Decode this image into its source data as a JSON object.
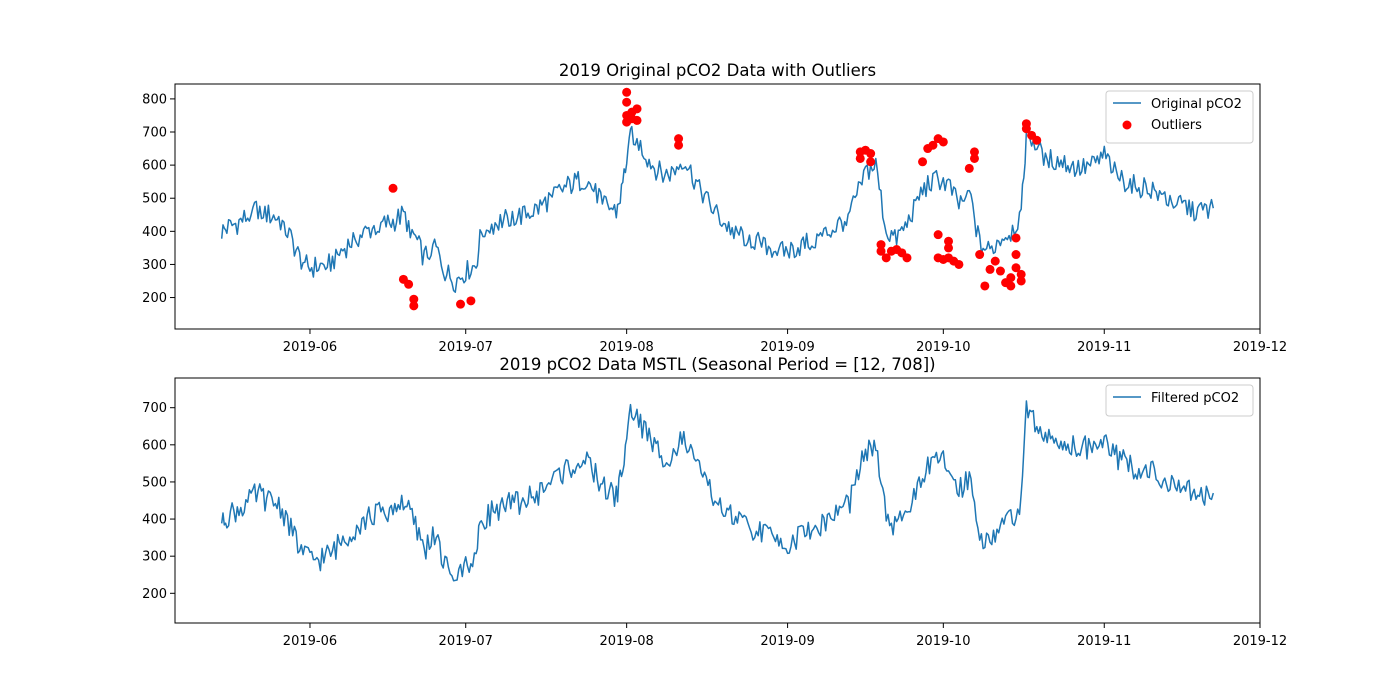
{
  "chart_data": [
    {
      "type": "line",
      "title": "2019 Original pCO2 Data with Outliers",
      "xlabel": "",
      "ylabel": "",
      "x_axis_type": "date",
      "xlim": [
        "2019-05-06",
        "2019-12-01"
      ],
      "ylim": [
        105,
        845
      ],
      "x_ticks": [
        "2019-06",
        "2019-07",
        "2019-08",
        "2019-09",
        "2019-10",
        "2019-11",
        "2019-12"
      ],
      "y_ticks": [
        200,
        300,
        400,
        500,
        600,
        700,
        800
      ],
      "legend_position": "top-right",
      "legend": [
        "Original pCO2",
        "Outliers"
      ],
      "series": [
        {
          "name": "Original pCO2",
          "color": "#1f77b4",
          "points": [
            [
              "2019-05-15",
              400
            ],
            [
              "2019-05-16",
              410
            ],
            [
              "2019-05-18",
              425
            ],
            [
              "2019-05-20",
              445
            ],
            [
              "2019-05-22",
              470
            ],
            [
              "2019-05-24",
              450
            ],
            [
              "2019-05-26",
              440
            ],
            [
              "2019-05-28",
              390
            ],
            [
              "2019-05-30",
              320
            ],
            [
              "2019-06-01",
              290
            ],
            [
              "2019-06-03",
              295
            ],
            [
              "2019-06-05",
              305
            ],
            [
              "2019-06-07",
              340
            ],
            [
              "2019-06-09",
              370
            ],
            [
              "2019-06-11",
              390
            ],
            [
              "2019-06-13",
              410
            ],
            [
              "2019-06-15",
              420
            ],
            [
              "2019-06-17",
              430
            ],
            [
              "2019-06-19",
              450
            ],
            [
              "2019-06-21",
              390
            ],
            [
              "2019-06-23",
              320
            ],
            [
              "2019-06-25",
              360
            ],
            [
              "2019-06-27",
              280
            ],
            [
              "2019-06-29",
              250
            ],
            [
              "2019-07-01",
              280
            ],
            [
              "2019-07-03",
              300
            ],
            [
              "2019-07-04",
              400
            ],
            [
              "2019-07-06",
              420
            ],
            [
              "2019-07-09",
              440
            ],
            [
              "2019-07-12",
              450
            ],
            [
              "2019-07-15",
              470
            ],
            [
              "2019-07-18",
              510
            ],
            [
              "2019-07-21",
              540
            ],
            [
              "2019-07-24",
              560
            ],
            [
              "2019-07-26",
              520
            ],
            [
              "2019-07-28",
              480
            ],
            [
              "2019-07-30",
              460
            ],
            [
              "2019-07-31",
              520
            ],
            [
              "2019-08-01",
              620
            ],
            [
              "2019-08-02",
              700
            ],
            [
              "2019-08-04",
              650
            ],
            [
              "2019-08-06",
              600
            ],
            [
              "2019-08-08",
              570
            ],
            [
              "2019-08-10",
              580
            ],
            [
              "2019-08-12",
              620
            ],
            [
              "2019-08-14",
              560
            ],
            [
              "2019-08-17",
              480
            ],
            [
              "2019-08-20",
              420
            ],
            [
              "2019-08-23",
              390
            ],
            [
              "2019-08-26",
              370
            ],
            [
              "2019-08-29",
              350
            ],
            [
              "2019-09-01",
              340
            ],
            [
              "2019-09-04",
              360
            ],
            [
              "2019-09-07",
              380
            ],
            [
              "2019-09-10",
              410
            ],
            [
              "2019-09-13",
              450
            ],
            [
              "2019-09-16",
              580
            ],
            [
              "2019-09-18",
              600
            ],
            [
              "2019-09-20",
              400
            ],
            [
              "2019-09-22",
              380
            ],
            [
              "2019-09-24",
              420
            ],
            [
              "2019-09-26",
              500
            ],
            [
              "2019-09-28",
              540
            ],
            [
              "2019-09-30",
              560
            ],
            [
              "2019-10-02",
              540
            ],
            [
              "2019-10-04",
              480
            ],
            [
              "2019-10-06",
              520
            ],
            [
              "2019-10-08",
              360
            ],
            [
              "2019-10-10",
              340
            ],
            [
              "2019-10-12",
              380
            ],
            [
              "2019-10-14",
              400
            ],
            [
              "2019-10-16",
              450
            ],
            [
              "2019-10-17",
              700
            ],
            [
              "2019-10-19",
              660
            ],
            [
              "2019-10-21",
              620
            ],
            [
              "2019-10-24",
              610
            ],
            [
              "2019-10-27",
              590
            ],
            [
              "2019-10-30",
              600
            ],
            [
              "2019-11-01",
              630
            ],
            [
              "2019-11-04",
              560
            ],
            [
              "2019-11-07",
              540
            ],
            [
              "2019-11-10",
              530
            ],
            [
              "2019-11-13",
              500
            ],
            [
              "2019-11-16",
              480
            ],
            [
              "2019-11-19",
              460
            ],
            [
              "2019-11-22",
              470
            ]
          ]
        },
        {
          "name": "Outliers",
          "color": "#ff0000",
          "kind": "scatter",
          "points": [
            [
              "2019-06-17",
              530
            ],
            [
              "2019-06-19",
              255
            ],
            [
              "2019-06-20",
              240
            ],
            [
              "2019-06-21",
              195
            ],
            [
              "2019-06-21",
              175
            ],
            [
              "2019-06-30",
              180
            ],
            [
              "2019-07-02",
              190
            ],
            [
              "2019-08-01",
              820
            ],
            [
              "2019-08-01",
              790
            ],
            [
              "2019-08-01",
              750
            ],
            [
              "2019-08-01",
              730
            ],
            [
              "2019-08-02",
              760
            ],
            [
              "2019-08-02",
              740
            ],
            [
              "2019-08-03",
              770
            ],
            [
              "2019-08-03",
              735
            ],
            [
              "2019-08-11",
              680
            ],
            [
              "2019-08-11",
              660
            ],
            [
              "2019-09-15",
              620
            ],
            [
              "2019-09-15",
              640
            ],
            [
              "2019-09-16",
              645
            ],
            [
              "2019-09-17",
              635
            ],
            [
              "2019-09-17",
              610
            ],
            [
              "2019-09-19",
              360
            ],
            [
              "2019-09-19",
              340
            ],
            [
              "2019-09-20",
              320
            ],
            [
              "2019-09-21",
              340
            ],
            [
              "2019-09-22",
              345
            ],
            [
              "2019-09-23",
              335
            ],
            [
              "2019-09-24",
              320
            ],
            [
              "2019-09-27",
              610
            ],
            [
              "2019-09-28",
              650
            ],
            [
              "2019-09-29",
              660
            ],
            [
              "2019-09-30",
              680
            ],
            [
              "2019-09-30",
              390
            ],
            [
              "2019-09-30",
              320
            ],
            [
              "2019-10-01",
              670
            ],
            [
              "2019-10-01",
              315
            ],
            [
              "2019-10-02",
              370
            ],
            [
              "2019-10-02",
              350
            ],
            [
              "2019-10-02",
              320
            ],
            [
              "2019-10-03",
              310
            ],
            [
              "2019-10-04",
              300
            ],
            [
              "2019-10-06",
              590
            ],
            [
              "2019-10-07",
              640
            ],
            [
              "2019-10-07",
              620
            ],
            [
              "2019-10-08",
              330
            ],
            [
              "2019-10-09",
              235
            ],
            [
              "2019-10-10",
              285
            ],
            [
              "2019-10-11",
              310
            ],
            [
              "2019-10-12",
              280
            ],
            [
              "2019-10-13",
              245
            ],
            [
              "2019-10-14",
              260
            ],
            [
              "2019-10-14",
              235
            ],
            [
              "2019-10-15",
              380
            ],
            [
              "2019-10-15",
              330
            ],
            [
              "2019-10-15",
              290
            ],
            [
              "2019-10-16",
              270
            ],
            [
              "2019-10-16",
              250
            ],
            [
              "2019-10-17",
              725
            ],
            [
              "2019-10-17",
              710
            ],
            [
              "2019-10-18",
              690
            ],
            [
              "2019-10-19",
              675
            ]
          ]
        }
      ]
    },
    {
      "type": "line",
      "title": "2019 pCO2 Data MSTL (Seasonal Period = [12, 708])",
      "xlabel": "",
      "ylabel": "",
      "x_axis_type": "date",
      "xlim": [
        "2019-05-06",
        "2019-12-01"
      ],
      "ylim": [
        120,
        780
      ],
      "x_ticks": [
        "2019-06",
        "2019-07",
        "2019-08",
        "2019-09",
        "2019-10",
        "2019-11",
        "2019-12"
      ],
      "y_ticks": [
        200,
        300,
        400,
        500,
        600,
        700
      ],
      "legend_position": "top-right",
      "legend": [
        "Filtered pCO2"
      ],
      "series": [
        {
          "name": "Filtered pCO2",
          "color": "#1f77b4",
          "points": [
            [
              "2019-05-15",
              400
            ],
            [
              "2019-05-16",
              410
            ],
            [
              "2019-05-18",
              425
            ],
            [
              "2019-05-20",
              445
            ],
            [
              "2019-05-22",
              470
            ],
            [
              "2019-05-24",
              450
            ],
            [
              "2019-05-26",
              440
            ],
            [
              "2019-05-28",
              390
            ],
            [
              "2019-05-30",
              320
            ],
            [
              "2019-06-01",
              290
            ],
            [
              "2019-06-03",
              295
            ],
            [
              "2019-06-05",
              305
            ],
            [
              "2019-06-07",
              340
            ],
            [
              "2019-06-09",
              370
            ],
            [
              "2019-06-11",
              390
            ],
            [
              "2019-06-13",
              410
            ],
            [
              "2019-06-15",
              420
            ],
            [
              "2019-06-17",
              430
            ],
            [
              "2019-06-19",
              450
            ],
            [
              "2019-06-21",
              390
            ],
            [
              "2019-06-23",
              320
            ],
            [
              "2019-06-25",
              360
            ],
            [
              "2019-06-27",
              280
            ],
            [
              "2019-06-29",
              250
            ],
            [
              "2019-07-01",
              280
            ],
            [
              "2019-07-03",
              300
            ],
            [
              "2019-07-04",
              400
            ],
            [
              "2019-07-06",
              420
            ],
            [
              "2019-07-09",
              440
            ],
            [
              "2019-07-12",
              450
            ],
            [
              "2019-07-15",
              470
            ],
            [
              "2019-07-18",
              510
            ],
            [
              "2019-07-21",
              540
            ],
            [
              "2019-07-24",
              560
            ],
            [
              "2019-07-26",
              520
            ],
            [
              "2019-07-28",
              480
            ],
            [
              "2019-07-30",
              460
            ],
            [
              "2019-07-31",
              520
            ],
            [
              "2019-08-01",
              620
            ],
            [
              "2019-08-02",
              700
            ],
            [
              "2019-08-04",
              650
            ],
            [
              "2019-08-06",
              600
            ],
            [
              "2019-08-08",
              570
            ],
            [
              "2019-08-10",
              580
            ],
            [
              "2019-08-12",
              620
            ],
            [
              "2019-08-14",
              560
            ],
            [
              "2019-08-17",
              480
            ],
            [
              "2019-08-20",
              420
            ],
            [
              "2019-08-23",
              390
            ],
            [
              "2019-08-26",
              370
            ],
            [
              "2019-08-29",
              350
            ],
            [
              "2019-09-01",
              340
            ],
            [
              "2019-09-04",
              360
            ],
            [
              "2019-09-07",
              380
            ],
            [
              "2019-09-10",
              410
            ],
            [
              "2019-09-13",
              450
            ],
            [
              "2019-09-16",
              580
            ],
            [
              "2019-09-18",
              600
            ],
            [
              "2019-09-20",
              400
            ],
            [
              "2019-09-22",
              380
            ],
            [
              "2019-09-24",
              420
            ],
            [
              "2019-09-26",
              500
            ],
            [
              "2019-09-28",
              540
            ],
            [
              "2019-09-30",
              560
            ],
            [
              "2019-10-02",
              540
            ],
            [
              "2019-10-04",
              480
            ],
            [
              "2019-10-06",
              520
            ],
            [
              "2019-10-08",
              360
            ],
            [
              "2019-10-10",
              340
            ],
            [
              "2019-10-12",
              380
            ],
            [
              "2019-10-14",
              400
            ],
            [
              "2019-10-16",
              450
            ],
            [
              "2019-10-17",
              700
            ],
            [
              "2019-10-19",
              660
            ],
            [
              "2019-10-21",
              620
            ],
            [
              "2019-10-24",
              610
            ],
            [
              "2019-10-27",
              590
            ],
            [
              "2019-10-30",
              600
            ],
            [
              "2019-11-01",
              630
            ],
            [
              "2019-11-04",
              560
            ],
            [
              "2019-11-07",
              540
            ],
            [
              "2019-11-10",
              530
            ],
            [
              "2019-11-13",
              500
            ],
            [
              "2019-11-16",
              480
            ],
            [
              "2019-11-19",
              460
            ],
            [
              "2019-11-22",
              470
            ]
          ]
        }
      ]
    }
  ]
}
